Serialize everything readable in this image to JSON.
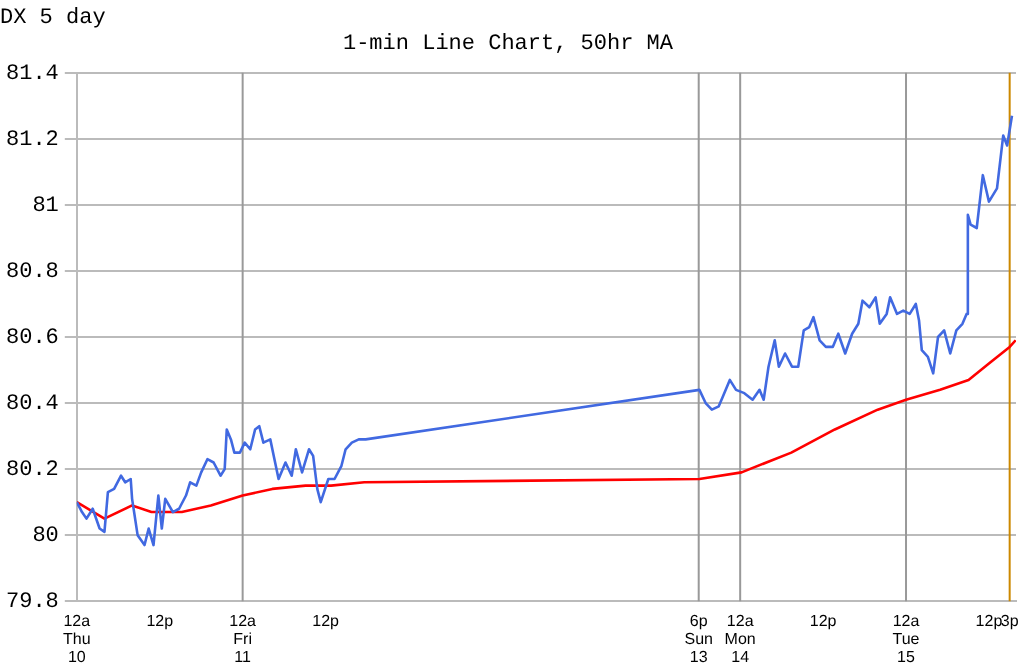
{
  "chart_data": {
    "type": "line",
    "title": "DX 5 day",
    "subtitle": "1-min Line Chart, 50hr MA",
    "series": [
      {
        "color": "#4169e1",
        "x": [
          "--05-10T00:00",
          "--05-10T00:45",
          "--05-10T01:24",
          "--05-10T02:18",
          "--05-10T03:18",
          "--05-10T04:00",
          "--05-10T04:30",
          "--05-10T05:24",
          "--05-10T06:24",
          "--05-10T07:00",
          "--05-10T07:48",
          "--05-10T08:00",
          "--05-10T08:48",
          "--05-10T09:48",
          "--05-10T10:24",
          "--05-10T11:06",
          "--05-10T11:48",
          "--05-10T12:18",
          "--05-10T12:48",
          "--05-10T13:54",
          "--05-10T14:48",
          "--05-10T15:48",
          "--05-10T16:24",
          "--05-10T17:18",
          "--05-10T18:00",
          "--05-10T18:54",
          "--05-10T19:48",
          "--05-10T20:48",
          "--05-10T21:24",
          "--05-10T21:42",
          "--05-10T22:18",
          "--05-10T22:48",
          "--05-10T23:36",
          "--05-11T00:18",
          "--05-11T01:06",
          "--05-11T01:48",
          "--05-11T02:24",
          "--05-11T03:00",
          "--05-11T04:00",
          "--05-11T04:36",
          "--05-11T05:12",
          "--05-11T06:12",
          "--05-11T07:06",
          "--05-11T07:42",
          "--05-11T08:36",
          "--05-11T09:36",
          "--05-11T10:12",
          "--05-11T10:48",
          "--05-11T11:18",
          "--05-11T12:24",
          "--05-11T13:18",
          "--05-11T14:18",
          "--05-11T14:54",
          "--05-11T15:48",
          "--05-11T16:48",
          "--05-11T17:48",
          "--05-13T18:06",
          "--05-13T19:00",
          "--05-13T19:54",
          "--05-13T20:54",
          "--05-13T21:30",
          "--05-13T22:30",
          "--05-13T23:24",
          "--05-14T00:36",
          "--05-14T01:48",
          "--05-14T02:48",
          "--05-14T03:24",
          "--05-14T04:06",
          "--05-14T05:00",
          "--05-14T05:36",
          "--05-14T06:30",
          "--05-14T07:30",
          "--05-14T08:24",
          "--05-14T09:12",
          "--05-14T10:00",
          "--05-14T10:36",
          "--05-14T11:30",
          "--05-14T12:24",
          "--05-14T13:24",
          "--05-14T14:12",
          "--05-14T15:12",
          "--05-14T16:12",
          "--05-14T17:06",
          "--05-14T17:42",
          "--05-14T18:42",
          "--05-14T19:36",
          "--05-14T20:12",
          "--05-14T21:12",
          "--05-14T21:42",
          "--05-14T22:42",
          "--05-14T23:36",
          "--05-15T00:32",
          "--05-15T01:25",
          "--05-15T01:53",
          "--05-15T02:17",
          "--05-15T03:10",
          "--05-15T03:56",
          "--05-15T04:38",
          "--05-15T05:31",
          "--05-15T06:24",
          "--05-15T07:17",
          "--05-15T08:10",
          "--05-15T08:46",
          "--05-15T08:57",
          "--05-15T09:21",
          "--05-15T10:14",
          "--05-15T11:07",
          "--05-15T12:00",
          "--05-15T13:10",
          "--05-15T14:04",
          "--05-15T14:38",
          "--05-15T15:20"
        ],
        "values": [
          80.1,
          80.07,
          80.05,
          80.08,
          80.02,
          80.01,
          80.13,
          80.14,
          80.18,
          80.16,
          80.17,
          80.11,
          80.0,
          79.97,
          80.02,
          79.97,
          80.12,
          80.02,
          80.11,
          80.07,
          80.08,
          80.12,
          80.16,
          80.15,
          80.19,
          80.23,
          80.22,
          80.18,
          80.2,
          80.32,
          80.29,
          80.25,
          80.25,
          80.28,
          80.26,
          80.32,
          80.33,
          80.28,
          80.29,
          80.23,
          80.17,
          80.22,
          80.18,
          80.26,
          80.19,
          80.26,
          80.24,
          80.14,
          80.1,
          80.17,
          80.17,
          80.21,
          80.26,
          80.28,
          80.29,
          80.29,
          80.44,
          80.4,
          80.38,
          80.39,
          80.42,
          80.47,
          80.44,
          80.43,
          80.41,
          80.44,
          80.41,
          80.51,
          80.59,
          80.51,
          80.55,
          80.51,
          80.51,
          80.62,
          80.63,
          80.66,
          80.59,
          80.57,
          80.57,
          80.61,
          80.55,
          80.61,
          80.64,
          80.71,
          80.69,
          80.72,
          80.64,
          80.67,
          80.72,
          80.67,
          80.68,
          80.67,
          80.7,
          80.65,
          80.56,
          80.54,
          80.49,
          80.6,
          80.62,
          80.55,
          80.62,
          80.64,
          80.67,
          80.97,
          80.94,
          80.93,
          81.09,
          81.01,
          81.05,
          81.21,
          81.18,
          81.27
        ]
      },
      {
        "color": "#ff0000",
        "x": [
          "--05-10T00:00",
          "--05-10T04:00",
          "--05-10T08:00",
          "--05-10T10:48",
          "--05-10T15:12",
          "--05-10T19:24",
          "--05-11T00:00",
          "--05-11T04:18",
          "--05-11T09:06",
          "--05-11T12:48",
          "--05-11T17:36",
          "--05-13T18:06",
          "--05-14T00:12",
          "--05-14T07:24",
          "--05-14T13:42",
          "--05-14T19:54",
          "--05-15T00:00",
          "--05-15T04:56",
          "--05-15T09:03",
          "--05-15T12:00",
          "--05-15T15:00",
          "--05-15T15:52"
        ],
        "values": [
          80.1,
          80.05,
          80.09,
          80.07,
          80.07,
          80.09,
          80.12,
          80.14,
          80.15,
          80.15,
          80.16,
          80.17,
          80.19,
          80.25,
          80.32,
          80.38,
          80.41,
          80.44,
          80.47,
          80.52,
          80.57,
          80.59
        ]
      }
    ],
    "xlim": [
      "--05-10T00:00",
      "--05-15T15:55"
    ],
    "xticks": [
      {
        "value": "--05-10T00:00",
        "label": "12a\nThu 10"
      },
      {
        "value": "--05-10T12:00",
        "label": "12p"
      },
      {
        "value": "--05-11T00:00",
        "label": "12a\nFri 11"
      },
      {
        "value": "--05-11T12:00",
        "label": "12p"
      },
      {
        "value": "--05-13T18:00",
        "label": "6p\nSun 13"
      },
      {
        "value": "--05-14T00:00",
        "label": "12a\nMon 14"
      },
      {
        "value": "--05-14T12:00",
        "label": "12p"
      },
      {
        "value": "--05-15T00:00",
        "label": "12a\nTue 15"
      },
      {
        "value": "--05-15T12:00",
        "label": "12p"
      },
      {
        "value": "--05-15T15:00",
        "label": "3p"
      }
    ],
    "ylim": [
      79.8,
      81.4
    ],
    "yticks": [
      79.8,
      80,
      80.2,
      80.4,
      80.6,
      80.8,
      81,
      81.2,
      81.4
    ],
    "ref_lines": [
      {
        "axis": "x",
        "value": "--05-11T00:00",
        "color": "#999999"
      },
      {
        "axis": "x",
        "value": "--05-13T18:00",
        "color": "#999999"
      },
      {
        "axis": "x",
        "value": "--05-14T00:00",
        "color": "#999999"
      },
      {
        "axis": "x",
        "value": "--05-15T00:00",
        "color": "#999999"
      },
      {
        "axis": "x",
        "value": "--05-15T15:00",
        "color": "#cc8800"
      }
    ],
    "grid": "y",
    "legend": false,
    "marker": "none",
    "line_style": "solid"
  }
}
